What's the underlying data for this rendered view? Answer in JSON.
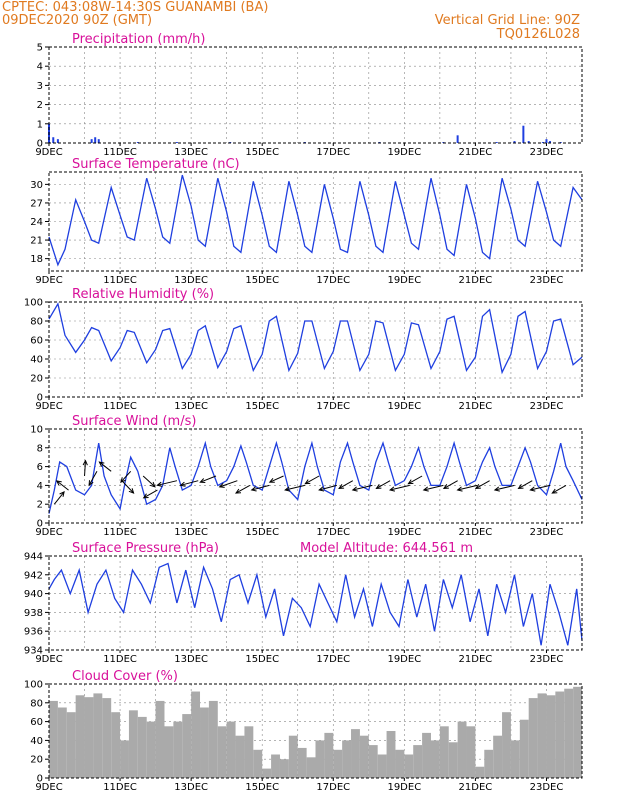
{
  "header": {
    "line1_left": "CPTEC:   043:08W-14:30S   GUANAMBI (BA)",
    "line2_left": "09DEC2020 90Z (GMT)",
    "line2_right": "Vertical Grid Line: 90Z",
    "line3_right": "TQ0126L028"
  },
  "colors": {
    "header": "#e07a20",
    "title": "#d8109a",
    "line": "#1f3fe0",
    "bar": "#1f3fe0",
    "cloud": "#aaaaaa",
    "grid": "#999999"
  },
  "chart_data": [
    {
      "type": "bar",
      "title": "Precipitation (mm/h)",
      "x_tick_labels": [
        "9DEC",
        "11DEC",
        "13DEC",
        "15DEC",
        "17DEC",
        "19DEC",
        "21DEC",
        "23DEC"
      ],
      "ylim": [
        0,
        5
      ],
      "yticks": [
        0,
        1,
        2,
        3,
        4,
        5
      ],
      "days": [
        9,
        24
      ],
      "x": [
        9.0,
        9.12,
        9.25,
        10.2,
        10.3,
        10.4,
        11.5,
        12.6,
        14.1,
        16.2,
        18.3,
        20.1,
        20.5,
        21.6,
        22.1,
        22.35,
        22.5,
        22.9,
        23.0,
        23.1,
        23.4
      ],
      "values": [
        1.0,
        0.3,
        0.2,
        0.2,
        0.3,
        0.2,
        0.05,
        0.05,
        0.05,
        0.05,
        0.05,
        0.05,
        0.4,
        0.05,
        0.1,
        0.9,
        0.1,
        0.05,
        0.2,
        0.1,
        0.05
      ]
    },
    {
      "type": "line",
      "title": "Surface Temperature (nC)",
      "x_tick_labels": [
        "9DEC",
        "11DEC",
        "13DEC",
        "15DEC",
        "17DEC",
        "19DEC",
        "21DEC",
        "23DEC"
      ],
      "ylim": [
        16,
        32
      ],
      "yticks": [
        18,
        21,
        24,
        27,
        30
      ],
      "days": [
        9,
        24
      ],
      "x": [
        9.0,
        9.25,
        9.45,
        9.75,
        10.0,
        10.2,
        10.4,
        10.75,
        11.0,
        11.2,
        11.4,
        11.75,
        12.0,
        12.2,
        12.4,
        12.75,
        13.0,
        13.2,
        13.4,
        13.75,
        14.0,
        14.2,
        14.4,
        14.75,
        15.0,
        15.2,
        15.4,
        15.75,
        16.0,
        16.2,
        16.4,
        16.75,
        17.0,
        17.2,
        17.4,
        17.75,
        18.0,
        18.2,
        18.4,
        18.75,
        19.0,
        19.2,
        19.4,
        19.75,
        20.0,
        20.2,
        20.4,
        20.75,
        21.0,
        21.2,
        21.4,
        21.75,
        22.0,
        22.2,
        22.4,
        22.75,
        23.0,
        23.2,
        23.4,
        23.75,
        24.0
      ],
      "values": [
        21.5,
        17.0,
        19.5,
        27.5,
        24.0,
        21.0,
        20.5,
        29.5,
        25.0,
        21.5,
        21.0,
        31.0,
        26.0,
        21.5,
        20.5,
        31.5,
        26.5,
        21.0,
        20.0,
        31.0,
        25.5,
        20.0,
        19.0,
        30.5,
        25.0,
        20.0,
        19.0,
        30.5,
        25.0,
        20.0,
        19.0,
        30.0,
        24.5,
        19.5,
        19.0,
        30.5,
        25.0,
        20.0,
        19.0,
        30.5,
        25.0,
        20.5,
        19.5,
        31.0,
        25.0,
        19.5,
        18.5,
        30.0,
        24.5,
        19.0,
        18.0,
        31.0,
        26.0,
        21.0,
        20.0,
        30.5,
        25.5,
        21.0,
        20.0,
        29.5,
        27.5
      ]
    },
    {
      "type": "line",
      "title": "Relative Humidity (%)",
      "x_tick_labels": [
        "9DEC",
        "11DEC",
        "13DEC",
        "15DEC",
        "17DEC",
        "19DEC",
        "21DEC",
        "23DEC"
      ],
      "ylim": [
        0,
        100
      ],
      "yticks": [
        0,
        20,
        40,
        60,
        80,
        100
      ],
      "days": [
        9,
        24
      ],
      "x": [
        9.0,
        9.25,
        9.45,
        9.75,
        10.0,
        10.2,
        10.4,
        10.75,
        11.0,
        11.2,
        11.4,
        11.75,
        12.0,
        12.2,
        12.4,
        12.75,
        13.0,
        13.2,
        13.4,
        13.75,
        14.0,
        14.2,
        14.4,
        14.75,
        15.0,
        15.2,
        15.4,
        15.75,
        16.0,
        16.2,
        16.4,
        16.75,
        17.0,
        17.2,
        17.4,
        17.75,
        18.0,
        18.2,
        18.4,
        18.75,
        19.0,
        19.2,
        19.4,
        19.75,
        20.0,
        20.2,
        20.4,
        20.75,
        21.0,
        21.2,
        21.4,
        21.75,
        22.0,
        22.2,
        22.4,
        22.75,
        23.0,
        23.2,
        23.4,
        23.75,
        24.0
      ],
      "values": [
        82,
        98,
        65,
        47,
        60,
        73,
        70,
        38,
        52,
        70,
        68,
        36,
        50,
        70,
        72,
        30,
        45,
        70,
        75,
        31,
        48,
        72,
        75,
        28,
        45,
        80,
        85,
        28,
        46,
        80,
        80,
        30,
        48,
        80,
        80,
        28,
        45,
        80,
        78,
        28,
        45,
        78,
        76,
        30,
        48,
        82,
        85,
        28,
        42,
        85,
        92,
        26,
        45,
        85,
        90,
        30,
        48,
        80,
        82,
        34,
        42
      ]
    },
    {
      "type": "line",
      "title": "Surface Wind (m/s)",
      "x_tick_labels": [
        "9DEC",
        "11DEC",
        "13DEC",
        "15DEC",
        "17DEC",
        "19DEC",
        "21DEC",
        "23DEC"
      ],
      "ylim": [
        0,
        10
      ],
      "yticks": [
        0,
        2,
        4,
        6,
        8,
        10
      ],
      "days": [
        9,
        24
      ],
      "x": [
        9.0,
        9.15,
        9.3,
        9.5,
        9.75,
        10.0,
        10.2,
        10.4,
        10.55,
        10.75,
        11.0,
        11.15,
        11.3,
        11.5,
        11.75,
        12.0,
        12.2,
        12.4,
        12.55,
        12.75,
        13.0,
        13.2,
        13.4,
        13.55,
        13.75,
        14.0,
        14.2,
        14.4,
        14.55,
        14.75,
        15.0,
        15.2,
        15.4,
        15.55,
        15.75,
        16.0,
        16.2,
        16.4,
        16.55,
        16.75,
        17.0,
        17.2,
        17.4,
        17.55,
        17.75,
        18.0,
        18.2,
        18.4,
        18.55,
        18.75,
        19.0,
        19.2,
        19.4,
        19.55,
        19.75,
        20.0,
        20.2,
        20.4,
        20.55,
        20.75,
        21.0,
        21.2,
        21.4,
        21.55,
        21.75,
        22.0,
        22.2,
        22.4,
        22.55,
        22.75,
        23.0,
        23.2,
        23.4,
        23.55,
        23.75,
        24.0
      ],
      "values": [
        1.0,
        3.5,
        6.5,
        6.0,
        3.5,
        3.0,
        4.0,
        8.5,
        5.0,
        3.0,
        1.5,
        4.5,
        7.0,
        5.5,
        2.0,
        2.5,
        4.0,
        8.0,
        6.0,
        3.5,
        4.0,
        6.0,
        8.5,
        6.0,
        4.0,
        4.5,
        6.0,
        8.2,
        6.5,
        4.0,
        3.5,
        6.0,
        8.5,
        6.5,
        3.5,
        2.5,
        6.0,
        8.5,
        6.0,
        3.5,
        3.0,
        6.5,
        8.5,
        6.5,
        4.0,
        3.5,
        6.5,
        8.5,
        6.5,
        4.0,
        4.5,
        6.0,
        8.0,
        6.0,
        4.0,
        4.0,
        6.0,
        8.5,
        6.5,
        4.0,
        4.5,
        6.5,
        8.0,
        6.0,
        4.0,
        4.0,
        6.0,
        8.0,
        6.5,
        4.0,
        3.0,
        5.5,
        8.5,
        6.0,
        4.5,
        2.5
      ],
      "arrows": {
        "x": [
          9.15,
          9.55,
          10.0,
          10.35,
          10.75,
          11.05,
          11.3,
          11.65,
          12.05,
          12.6,
          13.2,
          13.7,
          14.3,
          14.65,
          15.2,
          15.6,
          16.2,
          16.6,
          17.1,
          17.55,
          18.1,
          18.6,
          19.15,
          19.5,
          20.1,
          20.5,
          21.05,
          21.4,
          22.1,
          22.6,
          23.1,
          23.55
        ],
        "base_ms": [
          2.0,
          3.5,
          5.0,
          5.5,
          5.5,
          4.5,
          5.5,
          5.0,
          3.5,
          4.5,
          4.5,
          5.0,
          4.5,
          4.0,
          4.0,
          5.0,
          4.0,
          5.0,
          4.0,
          4.5,
          4.0,
          4.5,
          4.0,
          5.0,
          4.0,
          4.5,
          4.0,
          4.5,
          4.0,
          4.5,
          4.0,
          4.0
        ],
        "u": [
          -0.5,
          0.6,
          -0.05,
          0.4,
          0.6,
          -0.6,
          0.5,
          -0.6,
          0.7,
          1.0,
          0.9,
          0.8,
          0.9,
          0.7,
          0.9,
          0.7,
          1.0,
          0.7,
          0.9,
          0.7,
          1.0,
          0.7,
          1.0,
          0.7,
          1.0,
          0.7,
          1.0,
          0.7,
          1.0,
          0.7,
          1.0,
          0.7
        ],
        "v": [
          -0.8,
          -0.6,
          -1.0,
          0.9,
          -0.6,
          0.8,
          0.7,
          0.7,
          0.5,
          0.3,
          0.3,
          0.4,
          0.4,
          0.5,
          0.3,
          0.4,
          0.3,
          0.5,
          0.3,
          0.5,
          0.3,
          0.5,
          0.3,
          0.5,
          0.3,
          0.5,
          0.3,
          0.5,
          0.3,
          0.5,
          0.3,
          0.5
        ]
      }
    },
    {
      "type": "line",
      "title": "Surface Pressure (hPa)",
      "annotation": "Model Altitude: 644.561 m",
      "x_tick_labels": [
        "9DEC",
        "11DEC",
        "13DEC",
        "15DEC",
        "17DEC",
        "19DEC",
        "21DEC",
        "23DEC"
      ],
      "ylim": [
        934,
        944
      ],
      "yticks": [
        934,
        936,
        938,
        940,
        942,
        944
      ],
      "days": [
        9,
        24
      ],
      "x": [
        9.0,
        9.15,
        9.35,
        9.6,
        9.85,
        10.1,
        10.35,
        10.6,
        10.85,
        11.1,
        11.35,
        11.6,
        11.85,
        12.1,
        12.35,
        12.6,
        12.85,
        13.1,
        13.35,
        13.6,
        13.85,
        14.1,
        14.35,
        14.6,
        14.85,
        15.1,
        15.35,
        15.6,
        15.85,
        16.1,
        16.35,
        16.6,
        16.85,
        17.1,
        17.35,
        17.6,
        17.85,
        18.1,
        18.35,
        18.6,
        18.85,
        19.1,
        19.35,
        19.6,
        19.85,
        20.1,
        20.35,
        20.6,
        20.85,
        21.1,
        21.35,
        21.6,
        21.85,
        22.1,
        22.35,
        22.6,
        22.85,
        23.1,
        23.35,
        23.6,
        23.85,
        24.0
      ],
      "values": [
        940.5,
        941.5,
        942.5,
        940.0,
        942.5,
        938.0,
        941.0,
        942.5,
        939.5,
        938.0,
        942.5,
        941.0,
        939.0,
        942.8,
        943.2,
        939.0,
        942.5,
        938.5,
        942.8,
        940.5,
        937.0,
        941.5,
        942.0,
        939.0,
        942.0,
        937.5,
        940.5,
        935.5,
        939.5,
        938.5,
        936.5,
        941.0,
        939.0,
        937.0,
        942.0,
        937.5,
        940.5,
        936.5,
        941.0,
        938.0,
        936.5,
        941.5,
        937.5,
        941.0,
        936.0,
        941.5,
        938.5,
        942.0,
        937.0,
        940.5,
        935.5,
        941.0,
        938.0,
        942.0,
        936.5,
        940.0,
        934.5,
        941.0,
        938.0,
        934.5,
        940.5,
        935.0
      ]
    },
    {
      "type": "bar",
      "title": "Cloud Cover (%)",
      "x_tick_labels": [
        "9DEC",
        "11DEC",
        "13DEC",
        "15DEC",
        "17DEC",
        "19DEC",
        "21DEC",
        "23DEC"
      ],
      "ylim": [
        0,
        100
      ],
      "yticks": [
        0,
        20,
        40,
        60,
        80,
        100
      ],
      "days": [
        9,
        24
      ],
      "x": [
        9.0,
        9.25,
        9.5,
        9.75,
        10.0,
        10.25,
        10.5,
        10.75,
        11.0,
        11.25,
        11.5,
        11.75,
        12.0,
        12.25,
        12.5,
        12.75,
        13.0,
        13.25,
        13.5,
        13.75,
        14.0,
        14.25,
        14.5,
        14.75,
        15.0,
        15.25,
        15.5,
        15.75,
        16.0,
        16.25,
        16.5,
        16.75,
        17.0,
        17.25,
        17.5,
        17.75,
        18.0,
        18.25,
        18.5,
        18.75,
        19.0,
        19.25,
        19.5,
        19.75,
        20.0,
        20.25,
        20.5,
        20.75,
        21.0,
        21.25,
        21.5,
        21.75,
        22.0,
        22.25,
        22.5,
        22.75,
        23.0,
        23.25,
        23.5,
        23.75
      ],
      "values": [
        82,
        75,
        70,
        88,
        86,
        90,
        85,
        70,
        40,
        72,
        65,
        60,
        82,
        55,
        60,
        68,
        92,
        75,
        82,
        55,
        60,
        45,
        55,
        30,
        10,
        25,
        20,
        45,
        32,
        22,
        40,
        48,
        30,
        40,
        52,
        45,
        35,
        25,
        50,
        30,
        25,
        35,
        48,
        40,
        55,
        38,
        60,
        55,
        12,
        30,
        45,
        70,
        40,
        62,
        85,
        90,
        88,
        92,
        95,
        97
      ]
    }
  ]
}
